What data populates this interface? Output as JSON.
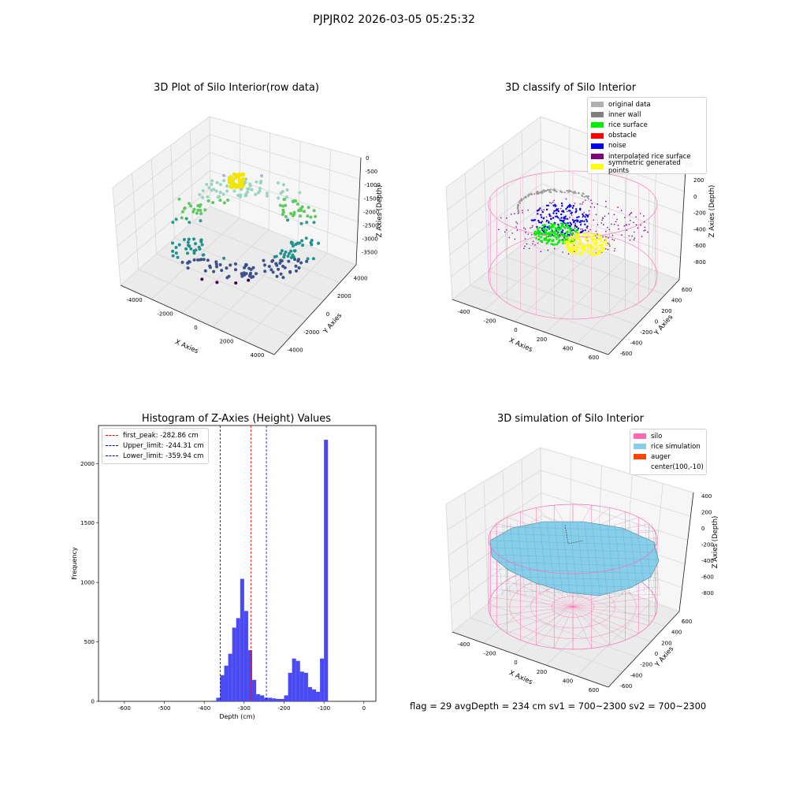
{
  "suptitle": "PJPJR02 2026-03-05 05:25:32",
  "footer_text": "flag = 29  avgDepth = 234 cm  sv1 = 700~2300  sv2 = 700~2300",
  "colors": {
    "histogram_bar": "#4a4af5",
    "first_peak_line": "#ff0000",
    "limit_lines": "#0000cc",
    "silo_wire": "#ff69b4",
    "rice_surface": "#00ee00",
    "noise": "#0000ee",
    "symmetric_points": "#ffff00",
    "interpolated_rice_surface": "#800080",
    "inner_wall": "#888888",
    "rice_simulation": "#87ceeb"
  },
  "chart_data": [
    {
      "id": "raw",
      "type": "scatter",
      "title": "3D Plot of Silo Interior(row data)",
      "xlabel": "X Axies",
      "ylabel": "Y Axies",
      "zlabel": "Z Axies (Depth)",
      "xticks": [
        "-4000",
        "-2000",
        "0",
        "2000",
        "4000"
      ],
      "yticks": [
        "-4000",
        "-2000",
        "0",
        "2000",
        "4000"
      ],
      "zticks": [
        "0",
        "-500",
        "-1000",
        "-1500",
        "-2000",
        "-2500",
        "-3000",
        "-3500"
      ],
      "xlim": [
        -4500,
        4500
      ],
      "ylim": [
        -4500,
        4500
      ],
      "zlim": [
        -3700,
        0
      ],
      "colormap": "viridis",
      "grid": true
    },
    {
      "id": "classify",
      "type": "scatter",
      "title": "3D classify of Silo Interior",
      "xlabel": "X Axies",
      "ylabel": "Y Axies",
      "zlabel": "Z Axies (Depth)",
      "xticks": [
        "-400",
        "-200",
        "0",
        "200",
        "400",
        "600"
      ],
      "yticks": [
        "-600",
        "-400",
        "-200",
        "0",
        "200",
        "400",
        "600"
      ],
      "zticks": [
        "200",
        "0",
        "-200",
        "-400",
        "-600",
        "-800"
      ],
      "extra_ztick": "00",
      "legend_position": "top-right",
      "legend": [
        {
          "label": "original data",
          "color": "#b0b0b0"
        },
        {
          "label": "inner wall",
          "color": "#808080"
        },
        {
          "label": "rice surface",
          "color": "#00ee00"
        },
        {
          "label": "obstacle",
          "color": "#ff0000"
        },
        {
          "label": "noise",
          "color": "#0000ee"
        },
        {
          "label": "interpolated rice surface",
          "color": "#800080"
        },
        {
          "label": "symmetric generated points",
          "color": "#ffff00"
        }
      ],
      "grid": true
    },
    {
      "id": "histogram",
      "type": "bar",
      "title": "Histogram of Z-Axies (Height) Values",
      "xlabel": "Depth (cm)",
      "ylabel": "Frequency",
      "xlim": [
        -665,
        30
      ],
      "ylim": [
        0,
        2320
      ],
      "xticks": [
        -600,
        -500,
        -400,
        -300,
        -200,
        -100,
        0
      ],
      "yticks": [
        0,
        500,
        1000,
        1500,
        2000
      ],
      "bin_start": -380,
      "bin_width": 10,
      "values": [
        5,
        30,
        220,
        300,
        400,
        620,
        700,
        1030,
        760,
        430,
        180,
        60,
        50,
        30,
        30,
        25,
        20,
        20,
        50,
        240,
        360,
        340,
        250,
        240,
        120,
        100,
        80,
        360,
        2200
      ],
      "vlines": [
        {
          "label": "first_peak: -282.86 cm",
          "x": -282.86,
          "color": "#ff0000"
        },
        {
          "label": "Upper_limit: -244.31 cm",
          "x": -244.31,
          "color": "#0000cc"
        },
        {
          "label": "Lower_limit: -359.94 cm",
          "x": -359.94,
          "color": "#0000cc"
        }
      ],
      "legend_position": "top-left"
    },
    {
      "id": "simulation",
      "type": "surface",
      "title": "3D simulation of Silo Interior",
      "xlabel": "X Axies",
      "ylabel": "Y Axies",
      "zlabel": "Z Axies (Depth)",
      "xticks": [
        "-400",
        "-200",
        "0",
        "200",
        "400",
        "600"
      ],
      "yticks": [
        "-600",
        "-400",
        "-200",
        "0",
        "200",
        "400",
        "600"
      ],
      "zticks": [
        "400",
        "200",
        "0",
        "-200",
        "-400",
        "-600",
        "-800"
      ],
      "legend_position": "top-right",
      "legend": [
        {
          "label": "silo",
          "color": "#ff69b4"
        },
        {
          "label": "rice simulation",
          "color": "#87ceeb"
        },
        {
          "label": "auger",
          "color": "#ff4500"
        },
        {
          "label": "center(100,-10)",
          "color": ""
        }
      ],
      "grid": true
    }
  ]
}
